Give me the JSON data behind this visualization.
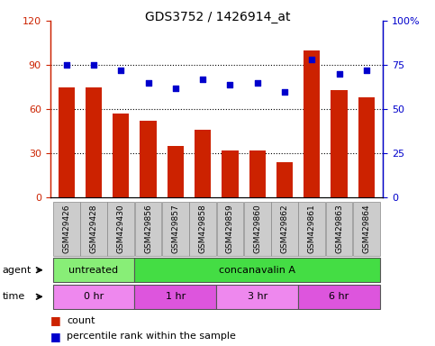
{
  "title": "GDS3752 / 1426914_at",
  "samples": [
    "GSM429426",
    "GSM429428",
    "GSM429430",
    "GSM429856",
    "GSM429857",
    "GSM429858",
    "GSM429859",
    "GSM429860",
    "GSM429862",
    "GSM429861",
    "GSM429863",
    "GSM429864"
  ],
  "bar_values": [
    75,
    75,
    57,
    52,
    35,
    46,
    32,
    32,
    24,
    100,
    73,
    68
  ],
  "dot_values": [
    75,
    75,
    72,
    65,
    62,
    67,
    64,
    65,
    60,
    78,
    70,
    72
  ],
  "bar_color": "#cc2200",
  "dot_color": "#0000cc",
  "left_ylim": [
    0,
    120
  ],
  "right_ylim": [
    0,
    100
  ],
  "left_yticks": [
    0,
    30,
    60,
    90,
    120
  ],
  "right_yticks": [
    0,
    25,
    50,
    75,
    100
  ],
  "right_yticklabels": [
    "0",
    "25",
    "50",
    "75",
    "100%"
  ],
  "gridlines": [
    30,
    60,
    90
  ],
  "agent_groups": [
    {
      "label": "untreated",
      "start": 0,
      "end": 3,
      "color": "#88ee77"
    },
    {
      "label": "concanavalin A",
      "start": 3,
      "end": 12,
      "color": "#44dd44"
    }
  ],
  "time_groups": [
    {
      "label": "0 hr",
      "start": 0,
      "end": 3,
      "color": "#ee88ee"
    },
    {
      "label": "1 hr",
      "start": 3,
      "end": 6,
      "color": "#dd55dd"
    },
    {
      "label": "3 hr",
      "start": 6,
      "end": 9,
      "color": "#ee88ee"
    },
    {
      "label": "6 hr",
      "start": 9,
      "end": 12,
      "color": "#dd55dd"
    }
  ],
  "legend_count_color": "#cc2200",
  "legend_dot_color": "#0000cc",
  "xticklabel_bg": "#cccccc",
  "left_axis_color": "#cc2200",
  "right_axis_color": "#0000cc",
  "figsize": [
    4.83,
    3.84
  ],
  "dpi": 100
}
